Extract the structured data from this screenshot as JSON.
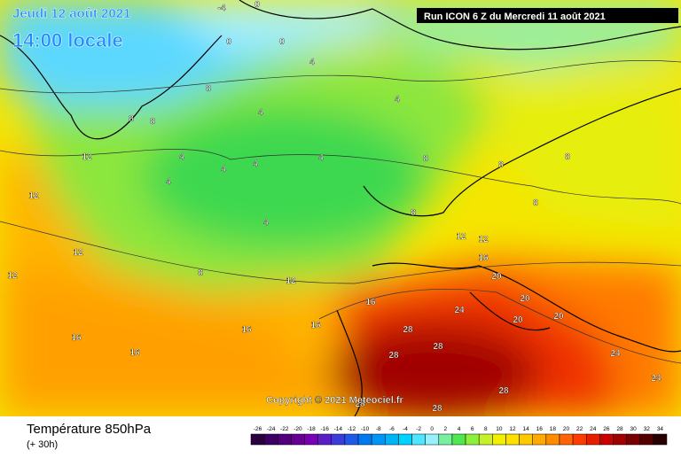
{
  "header": {
    "date": "Jeudi 12 août 2021",
    "time": "14:00 locale",
    "run": "Run ICON 6 Z du Mercredi 11 août 2021",
    "copyright": "Copyright © 2021 Meteociel.fr"
  },
  "footer": {
    "title": "Température 850hPa",
    "lead": "(+ 30h)"
  },
  "legend": {
    "ticks": [
      -26,
      -24,
      -22,
      -20,
      -18,
      -16,
      -14,
      -12,
      -10,
      -8,
      -6,
      -4,
      -2,
      0,
      2,
      4,
      6,
      8,
      10,
      12,
      14,
      16,
      18,
      20,
      22,
      24,
      26,
      28,
      30,
      32,
      34
    ],
    "colors": [
      "#2a0040",
      "#3c0060",
      "#50007a",
      "#640096",
      "#7800b0",
      "#5a1ec8",
      "#3c3cdc",
      "#1e5ae6",
      "#0078f0",
      "#0096f5",
      "#00b4fa",
      "#00d2ff",
      "#50e6ff",
      "#96f0ff",
      "#78f0a0",
      "#50e650",
      "#8cf03c",
      "#c8f028",
      "#f0f000",
      "#ffe100",
      "#ffc800",
      "#ffaa00",
      "#ff8c00",
      "#ff6400",
      "#ff3c00",
      "#e61e00",
      "#c80000",
      "#a00000",
      "#780000",
      "#500000",
      "#280000"
    ]
  },
  "map_labels": [
    -4,
    0,
    0,
    0,
    4,
    4,
    4,
    4,
    4,
    4,
    4,
    4,
    4,
    8,
    8,
    8,
    8,
    8,
    8,
    8,
    8,
    8,
    12,
    12,
    12,
    12,
    12,
    12,
    12,
    16,
    16,
    16,
    16,
    16,
    16,
    20,
    20,
    20,
    20,
    24,
    24,
    24,
    28,
    28,
    28,
    28,
    28,
    28
  ]
}
